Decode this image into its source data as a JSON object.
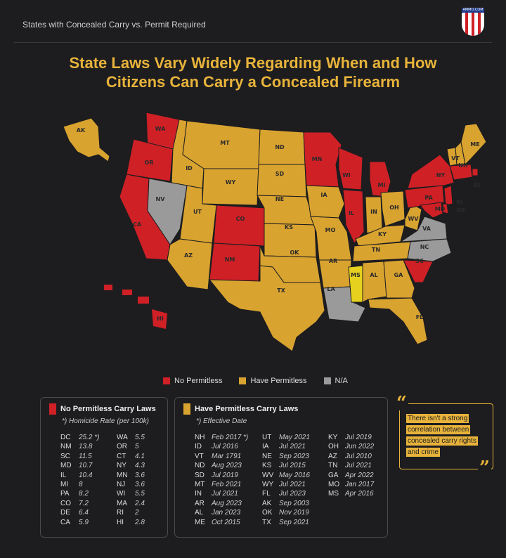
{
  "header": {
    "subtitle": "States with Concealed Carry vs. Permit Required",
    "logo_text": "AMMO.COM"
  },
  "headline": {
    "line1": "State Laws Vary Widely Regarding When and How",
    "line2": "Citizens Can Carry a Concealed Firearm"
  },
  "colors": {
    "red": "#cf2026",
    "gold": "#d9a330",
    "gray": "#9a9a9a",
    "yellow": "#e6d21e",
    "accent": "#e8b33b"
  },
  "map": {
    "state_labels": [
      "WA",
      "OR",
      "CA",
      "ID",
      "NV",
      "MT",
      "WY",
      "UT",
      "AZ",
      "CO",
      "NM",
      "ND",
      "SD",
      "NE",
      "KS",
      "OK",
      "TX",
      "MN",
      "IA",
      "MO",
      "AR",
      "LA",
      "WI",
      "IL",
      "MS",
      "MI",
      "IN",
      "KY",
      "TN",
      "AL",
      "OH",
      "WV",
      "VA",
      "NC",
      "SC",
      "GA",
      "FL",
      "PA",
      "NY",
      "VT",
      "NH",
      "ME",
      "NJ",
      "DE",
      "MD",
      "RI",
      "AK",
      "HI"
    ]
  },
  "legend": {
    "items": [
      {
        "label": "No Permitless",
        "color": "#cf2026"
      },
      {
        "label": "Have Permitless",
        "color": "#d9a330"
      },
      {
        "label": "N/A",
        "color": "#9a9a9a"
      }
    ]
  },
  "no_permitless": {
    "title": "No Permitless  Carry Laws",
    "subtitle": "*) Homicide Rate (per 100k)",
    "col1": [
      {
        "state": "DC",
        "value": "25.2 *)"
      },
      {
        "state": "NM",
        "value": "13.8"
      },
      {
        "state": "SC",
        "value": "11.5"
      },
      {
        "state": "MD",
        "value": "10.7"
      },
      {
        "state": "IL",
        "value": "10.4"
      },
      {
        "state": "MI",
        "value": "8"
      },
      {
        "state": "PA",
        "value": "8.2"
      },
      {
        "state": "CO",
        "value": "7.2"
      },
      {
        "state": "DE",
        "value": "6.4"
      },
      {
        "state": "CA",
        "value": "5.9"
      }
    ],
    "col2": [
      {
        "state": "WA",
        "value": "5.5"
      },
      {
        "state": "OR",
        "value": "5"
      },
      {
        "state": "CT",
        "value": "4.1"
      },
      {
        "state": "NY",
        "value": "4.3"
      },
      {
        "state": "MN",
        "value": "3.6"
      },
      {
        "state": "NJ",
        "value": "3.6"
      },
      {
        "state": "WI",
        "value": "5.5"
      },
      {
        "state": "MA",
        "value": "2.4"
      },
      {
        "state": "RI",
        "value": "2"
      },
      {
        "state": "HI",
        "value": "2.8"
      }
    ]
  },
  "have_permitless": {
    "title": "Have Permitless Carry Laws",
    "subtitle": "*) Effective Date",
    "col1": [
      {
        "state": "NH",
        "value": "Feb 2017 *)"
      },
      {
        "state": "ID",
        "value": "Jul 2016"
      },
      {
        "state": "VT",
        "value": "Mar 1791"
      },
      {
        "state": "ND",
        "value": "Aug 2023"
      },
      {
        "state": "SD",
        "value": "Jul 2019"
      },
      {
        "state": "MT",
        "value": "Feb 2021"
      },
      {
        "state": "IN",
        "value": "Jul 2021"
      },
      {
        "state": "AR",
        "value": "Aug 2023"
      },
      {
        "state": "AL",
        "value": "Jan 2023"
      },
      {
        "state": "ME",
        "value": "Oct 2015"
      }
    ],
    "col2": [
      {
        "state": "UT",
        "value": "May 2021"
      },
      {
        "state": "IA",
        "value": "Jul 2021"
      },
      {
        "state": "NE",
        "value": "Sep 2023"
      },
      {
        "state": "KS",
        "value": "Jul 2015"
      },
      {
        "state": "WV",
        "value": "May 2016"
      },
      {
        "state": "WY",
        "value": "Jul 2021"
      },
      {
        "state": "FL",
        "value": "Jul 2023"
      },
      {
        "state": "AK",
        "value": "Sep 2003"
      },
      {
        "state": "OK",
        "value": "Nov 2019"
      },
      {
        "state": "TX",
        "value": "Sep 2021"
      }
    ],
    "col3": [
      {
        "state": "KY",
        "value": "Jul 2019"
      },
      {
        "state": "OH",
        "value": "Jun 2022"
      },
      {
        "state": "AZ",
        "value": "Jul 2010"
      },
      {
        "state": "TN",
        "value": "Jul 2021"
      },
      {
        "state": "GA",
        "value": "Apr 2022"
      },
      {
        "state": "MO",
        "value": "Jan 2017"
      },
      {
        "state": "MS",
        "value": "Apr 2016"
      }
    ]
  },
  "quote": {
    "text": "There isn't a strong correlation between concealed carry rights and crime"
  }
}
